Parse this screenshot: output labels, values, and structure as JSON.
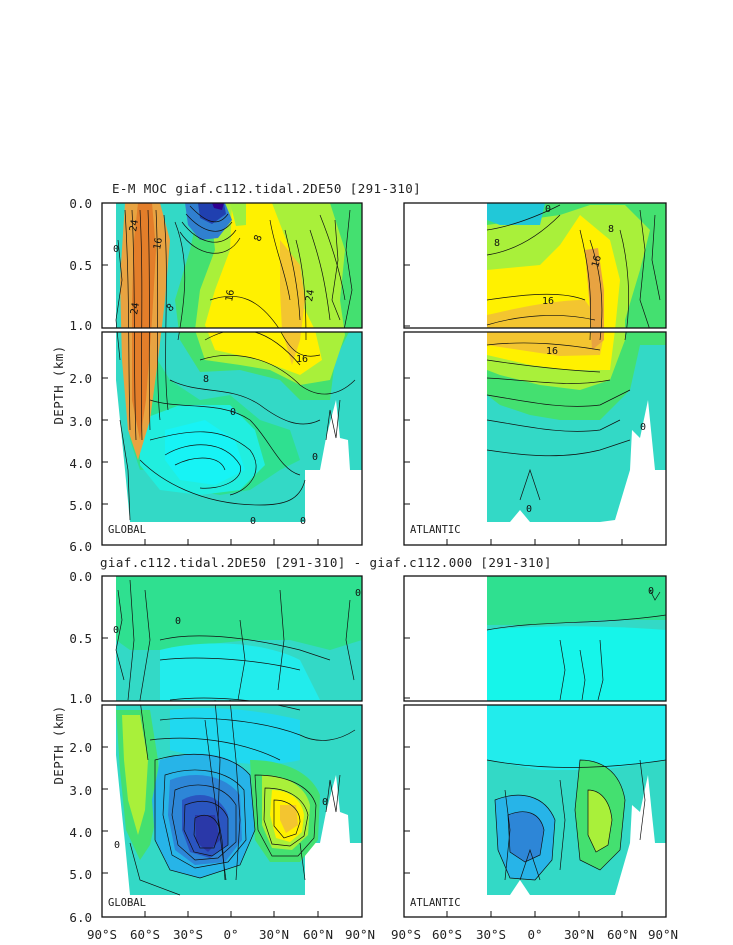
{
  "chart_data": {
    "type": "heatmap",
    "title_top": "E-M MOC  giaf.c112.tidal.2DE50 [291-310]",
    "title_bottom": "giaf.c112.tidal.2DE50 [291-310] - giaf.c112.000 [291-310]",
    "ylabel": "DEPTH (km)",
    "x_ticks": [
      "90°S",
      "60°S",
      "30°S",
      "0°",
      "30°N",
      "60°N",
      "90°N"
    ],
    "upper_y_ticks": [
      "0.0",
      "0.5",
      "1.0"
    ],
    "lower_y_ticks": [
      "2.0",
      "3.0",
      "4.0",
      "5.0",
      "6.0"
    ],
    "ylim_upper": [
      0,
      1
    ],
    "ylim_lower": [
      1,
      6
    ],
    "panels": [
      {
        "label": "GLOBAL",
        "row": 0,
        "col": 0,
        "contour_labels": [
          "24",
          "24",
          "16",
          "16",
          "8",
          "8",
          "8",
          "16",
          "24",
          "0",
          "0",
          "0",
          "0",
          "0"
        ]
      },
      {
        "label": "ATLANTIC",
        "row": 0,
        "col": 1,
        "contour_labels": [
          "8",
          "16",
          "16",
          "0",
          "16",
          "8",
          "0",
          "0"
        ]
      },
      {
        "label": "GLOBAL",
        "row": 1,
        "col": 0,
        "contour_labels": [
          "0",
          "0",
          "0",
          "0",
          "0"
        ]
      },
      {
        "label": "ATLANTIC",
        "row": 1,
        "col": 1,
        "contour_labels": [
          "0"
        ]
      }
    ]
  }
}
